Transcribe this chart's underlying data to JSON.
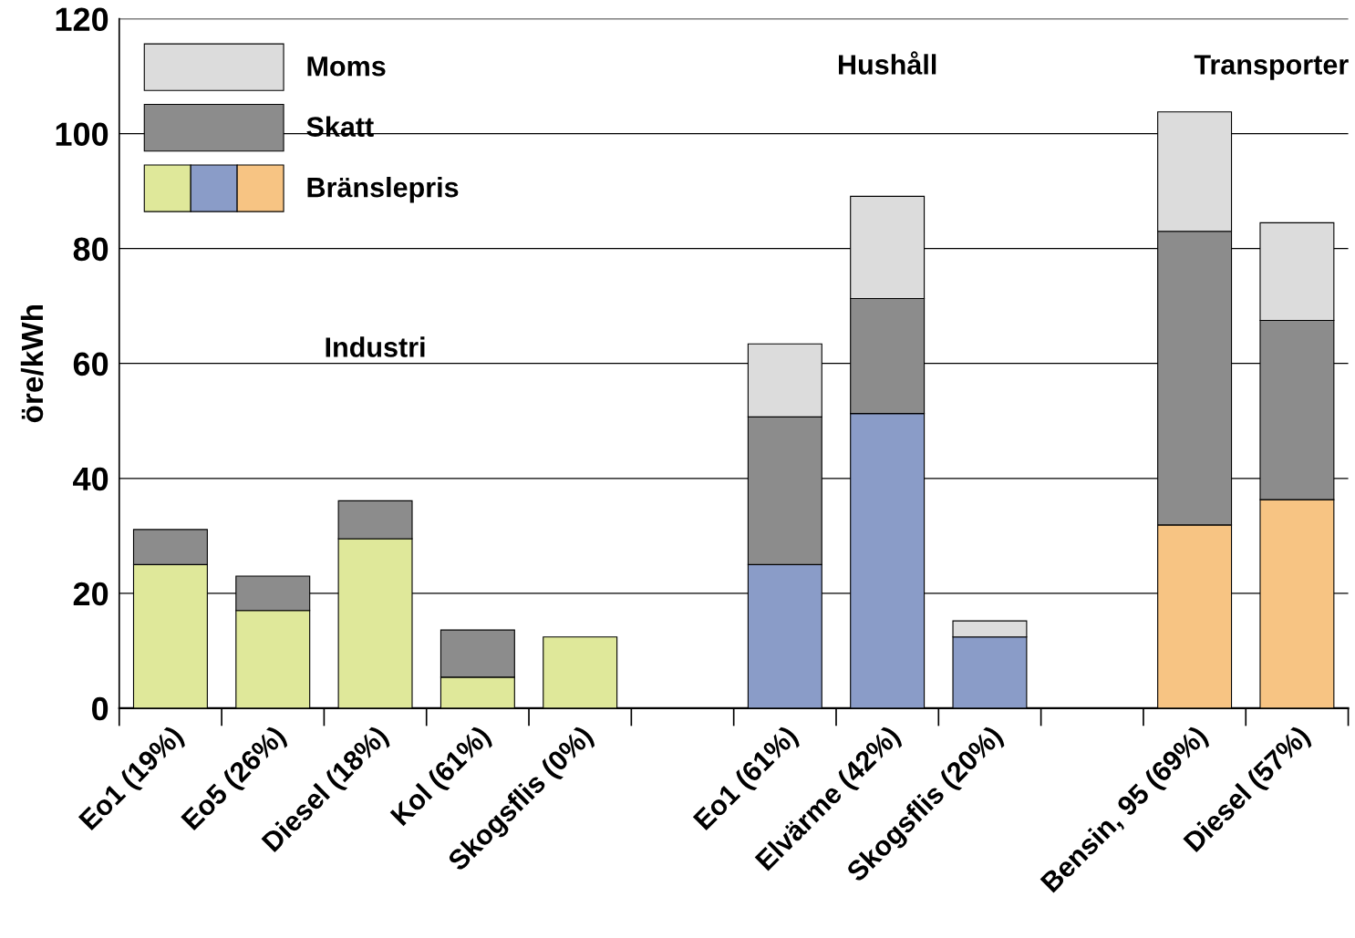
{
  "chart_data": {
    "type": "bar",
    "stacked": true,
    "ylabel": "öre/kWh",
    "categories": [
      "Eo1 (19%)",
      "Eo5 (26%)",
      "Diesel (18%)",
      "Kol (61%)",
      "Skogsflis (0%)",
      null,
      "Eo1 (61%)",
      "Elvärme (42%)",
      "Skogsflis (20%)",
      null,
      "Bensin, 95 (69%)",
      "Diesel (57%)"
    ],
    "series": [
      {
        "name": "Bränslepris",
        "colors": [
          "#dfe89a",
          "#dfe89a",
          "#dfe89a",
          "#dfe89a",
          "#dfe89a",
          null,
          "#8a9cc8",
          "#8a9cc8",
          "#8a9cc8",
          null,
          "#f7c483",
          "#f7c483"
        ],
        "values": [
          25,
          17,
          29.5,
          5.4,
          12.4,
          null,
          25,
          51.3,
          12.4,
          null,
          31.9,
          36.3
        ]
      },
      {
        "name": "Skatt",
        "color": "#8c8c8c",
        "values": [
          6.1,
          6,
          6.6,
          8.2,
          null,
          null,
          25.7,
          20,
          null,
          null,
          51.1,
          31.2
        ]
      },
      {
        "name": "Moms",
        "color": "#dcdcdc",
        "values": [
          null,
          null,
          null,
          null,
          null,
          null,
          12.7,
          17.8,
          2.8,
          null,
          20.8,
          17
        ]
      }
    ],
    "ylim": [
      0,
      120
    ],
    "yticks": [
      0,
      20,
      40,
      60,
      80,
      100,
      120
    ],
    "grid": "y",
    "legend": "top left",
    "annotations": [
      "Industri",
      "Hushåll",
      "Transporter"
    ]
  }
}
